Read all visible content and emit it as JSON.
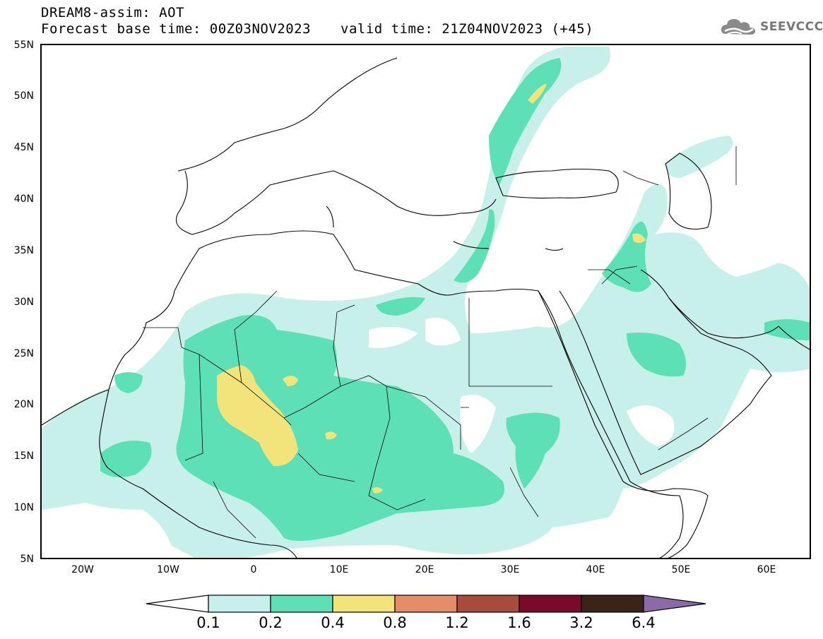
{
  "header": {
    "title": "DREAM8-assim: AOT",
    "base_time": "Forecast base time: 00Z03NOV2023",
    "valid_time": "valid time: 21Z04NOV2023 (+45)"
  },
  "logo": {
    "text": "SEEVCCC",
    "icon": "cloud-icon"
  },
  "map": {
    "region": "North Africa, Europe and Middle East",
    "lon_range": [
      -25,
      65
    ],
    "lat_range": [
      5,
      55
    ],
    "lat_labels": [
      "55N",
      "50N",
      "45N",
      "40N",
      "35N",
      "30N",
      "25N",
      "20N",
      "15N",
      "10N",
      "5N"
    ],
    "lon_labels": [
      "20W",
      "10W",
      "0",
      "10E",
      "20E",
      "30E",
      "40E",
      "50E",
      "60E"
    ]
  },
  "colorbar": {
    "labels": [
      "0.1",
      "0.2",
      "0.4",
      "0.8",
      "1.2",
      "1.6",
      "3.2",
      "6.4"
    ],
    "colors": [
      "#c8f0ea",
      "#5ee0b6",
      "#f2e47a",
      "#e58c68",
      "#a84a3c",
      "#7a0a2a",
      "#3a2418",
      "#8c6aa8"
    ]
  }
}
